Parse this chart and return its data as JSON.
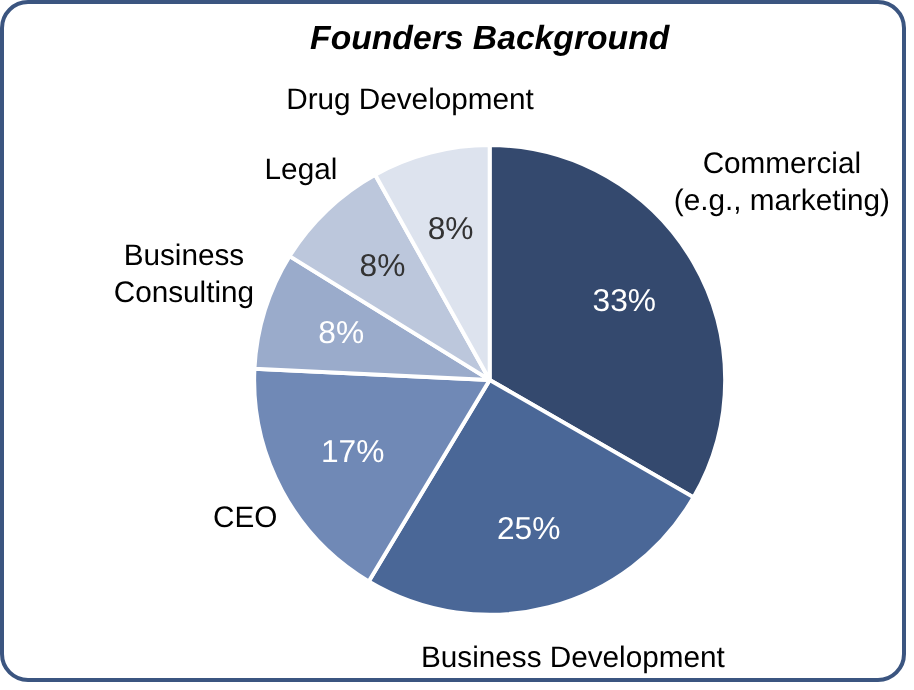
{
  "chart_data": {
    "type": "pie",
    "title": "Founders Background",
    "categories": [
      "Commercial\n(e.g., marketing)",
      "Business Development",
      "CEO",
      "Business\nConsulting",
      "Legal",
      "Drug Development"
    ],
    "values": [
      33,
      25,
      17,
      8,
      8,
      8
    ],
    "value_labels": [
      "33%",
      "25%",
      "17%",
      "8%",
      "8%",
      "8%"
    ],
    "colors": [
      "#34496e",
      "#4a6797",
      "#7089b6",
      "#9aabcb",
      "#bcc7dc",
      "#dde3ee"
    ],
    "legend": false
  }
}
